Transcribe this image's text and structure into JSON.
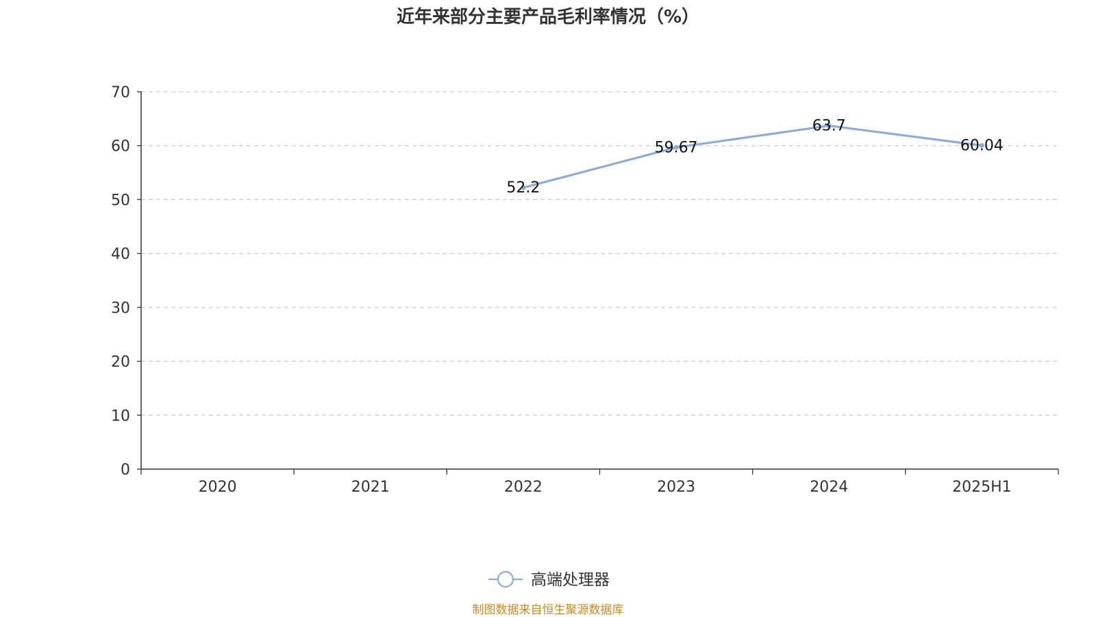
{
  "chart_data": {
    "type": "line",
    "title": "近年来部分主要产品毛利率情况（%）",
    "categories": [
      "2020",
      "2021",
      "2022",
      "2023",
      "2024",
      "2025H1"
    ],
    "series": [
      {
        "name": "高端处理器",
        "values": [
          null,
          null,
          52.2,
          59.67,
          63.7,
          60.04
        ],
        "color": "#8eabd7"
      }
    ],
    "data_labels": [
      "",
      "",
      "52.2",
      "59.67",
      "63.7",
      "60.04"
    ],
    "y_ticks": [
      "0",
      "10",
      "20",
      "30",
      "40",
      "50",
      "60",
      "70"
    ],
    "ylim": [
      0,
      70
    ],
    "grid": true,
    "legend_position": "bottom-center"
  },
  "source_note": "制图数据来自恒生聚源数据库",
  "colors": {
    "axis": "#333333",
    "grid": "#cccccc",
    "title": "#333333",
    "source": "#c48a1e"
  }
}
